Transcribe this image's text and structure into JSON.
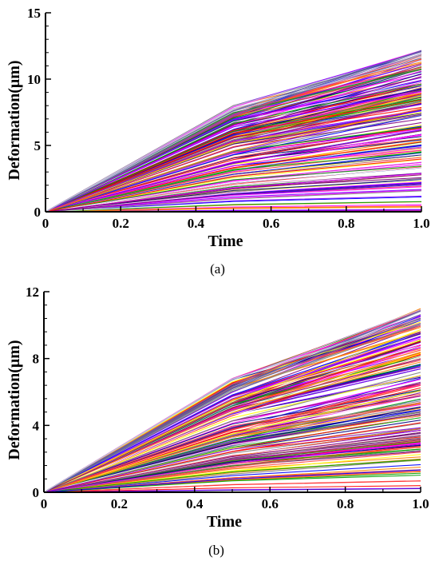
{
  "chart_data": [
    {
      "type": "line",
      "panel_label": "(a)",
      "xlabel": "Time",
      "ylabel": "Deformation(μm)",
      "xlim": [
        0,
        1.0
      ],
      "ylim": [
        0,
        15
      ],
      "x_ticks": [
        "0",
        "0.2",
        "0.4",
        "0.6",
        "0.8",
        "1.0"
      ],
      "x_tick_values": [
        0,
        0.2,
        0.4,
        0.6,
        0.8,
        1.0
      ],
      "y_ticks": [
        "0",
        "5",
        "10",
        "15"
      ],
      "y_tick_values": [
        0,
        5,
        10,
        15
      ],
      "x": [
        0,
        0.5,
        1.0
      ],
      "envelope_max": [
        0,
        8.0,
        12.2
      ],
      "series_count_estimate": 200,
      "description_of_series": "many piecewise-linear curves from 0 at t=0 through a knee at t=0.5 to final values between ~0 and 12.2 at t=1.0",
      "colors": [
        "#ff0000",
        "#8000ff",
        "#0000ff",
        "#ff8000",
        "#ffff00",
        "#00a000",
        "#ff00ff",
        "#800080",
        "#ff4040",
        "#ffffff",
        "#808080",
        "#000080"
      ]
    },
    {
      "type": "line",
      "panel_label": "(b)",
      "xlabel": "Time",
      "ylabel": "Deformation(μm)",
      "xlim": [
        0,
        1.0
      ],
      "ylim": [
        0,
        12
      ],
      "x_ticks": [
        "0",
        "0.2",
        "0.4",
        "0.6",
        "0.8",
        "1.0"
      ],
      "x_tick_values": [
        0,
        0.2,
        0.4,
        0.6,
        0.8,
        1.0
      ],
      "y_ticks": [
        "0",
        "4",
        "8",
        "12"
      ],
      "y_tick_values": [
        0,
        4,
        8,
        12
      ],
      "x": [
        0,
        0.5,
        1.0
      ],
      "envelope_max": [
        0,
        6.8,
        11.0
      ],
      "series_count_estimate": 200,
      "description_of_series": "many piecewise-linear curves from 0 at t=0 through a knee at t=0.5 to final values between ~0 and 11.0 at t=1.0",
      "colors": [
        "#ff0000",
        "#8000ff",
        "#0000ff",
        "#ff8000",
        "#ffff00",
        "#00a000",
        "#ff00ff",
        "#800080",
        "#ff4040",
        "#ffffff",
        "#808080",
        "#000080"
      ]
    }
  ]
}
